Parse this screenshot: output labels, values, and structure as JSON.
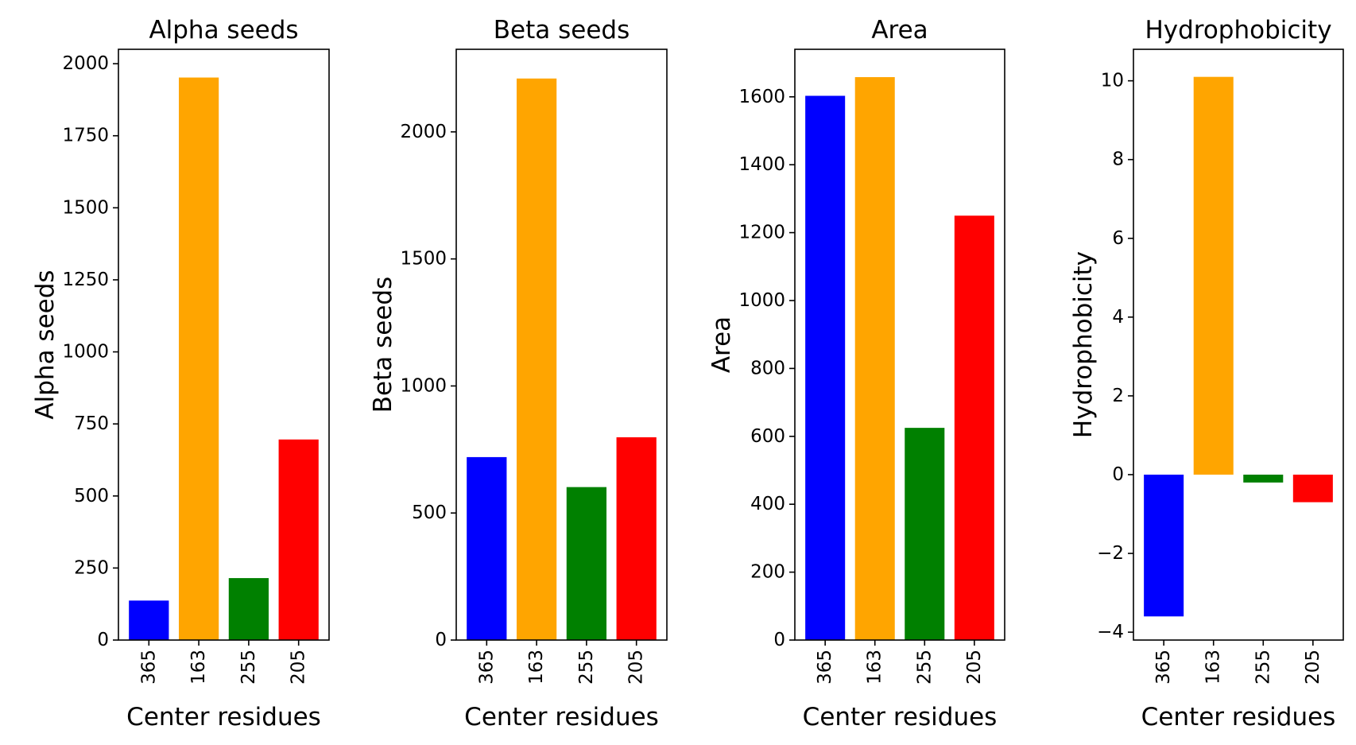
{
  "figure": {
    "background": "#ffffff"
  },
  "chart_data": [
    {
      "type": "bar",
      "title": "Alpha seeds",
      "xlabel": "Center residues",
      "ylabel": "Alpha seeds",
      "categories": [
        "365",
        "163",
        "255",
        "205"
      ],
      "values": [
        137,
        1952,
        215,
        696
      ],
      "colors": [
        "#0000ff",
        "#ffa500",
        "#008000",
        "#ff0000"
      ],
      "ylim": [
        0,
        2050
      ],
      "yticks": [
        0,
        250,
        500,
        750,
        1000,
        1250,
        1500,
        1750,
        2000
      ],
      "ytick_labels": [
        "0",
        "250",
        "500",
        "750",
        "1000",
        "1250",
        "1500",
        "1750",
        "2000"
      ],
      "xtick_rotation": "vertical",
      "grid": false,
      "legend": "none"
    },
    {
      "type": "bar",
      "title": "Beta seeds",
      "xlabel": "Center residues",
      "ylabel": "Beta seeds",
      "categories": [
        "365",
        "163",
        "255",
        "205"
      ],
      "values": [
        720,
        2210,
        602,
        798
      ],
      "colors": [
        "#0000ff",
        "#ffa500",
        "#008000",
        "#ff0000"
      ],
      "ylim": [
        0,
        2325
      ],
      "yticks": [
        0,
        500,
        1000,
        1500,
        2000
      ],
      "ytick_labels": [
        "0",
        "500",
        "1000",
        "1500",
        "2000"
      ],
      "xtick_rotation": "vertical",
      "grid": false,
      "legend": "none"
    },
    {
      "type": "bar",
      "title": "Area",
      "xlabel": "Center residues",
      "ylabel": "Area",
      "categories": [
        "365",
        "163",
        "255",
        "205"
      ],
      "values": [
        1603,
        1658,
        625,
        1250
      ],
      "colors": [
        "#0000ff",
        "#ffa500",
        "#008000",
        "#ff0000"
      ],
      "ylim": [
        0,
        1740
      ],
      "yticks": [
        0,
        200,
        400,
        600,
        800,
        1000,
        1200,
        1400,
        1600
      ],
      "ytick_labels": [
        "0",
        "200",
        "400",
        "600",
        "800",
        "1000",
        "1200",
        "1400",
        "1600"
      ],
      "xtick_rotation": "vertical",
      "grid": false,
      "legend": "none"
    },
    {
      "type": "bar",
      "title": "Hydrophobicity",
      "xlabel": "Center residues",
      "ylabel": "Hydrophobicity",
      "categories": [
        "365",
        "163",
        "255",
        "205"
      ],
      "values": [
        -3.6,
        10.1,
        -0.2,
        -0.7
      ],
      "colors": [
        "#0000ff",
        "#ffa500",
        "#008000",
        "#ff0000"
      ],
      "ylim": [
        -4.2,
        10.8
      ],
      "yticks": [
        -4,
        -2,
        0,
        2,
        4,
        6,
        8,
        10
      ],
      "ytick_labels": [
        "−4",
        "−2",
        "0",
        "2",
        "4",
        "6",
        "8",
        "10"
      ],
      "xtick_rotation": "vertical",
      "grid": false,
      "legend": "none"
    }
  ]
}
